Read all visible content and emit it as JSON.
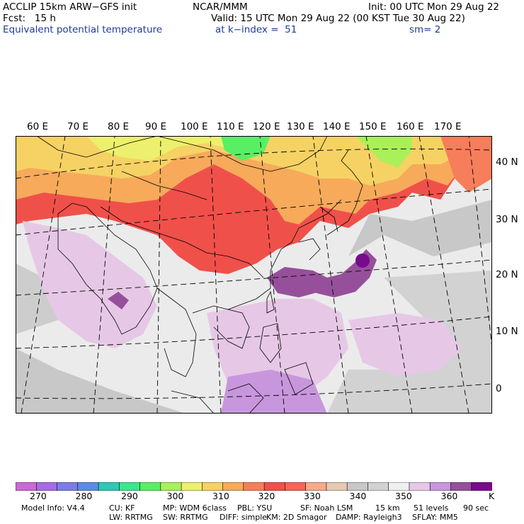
{
  "header": {
    "title_left": "ACCLIP 15km ARW−GFS init",
    "fcst": "Fcst:   15 h",
    "variable": "Equivalent potential temperature",
    "center": "NCAR/MMM",
    "init": "Init: 00 UTC Mon 29 Aug 22",
    "valid": "Valid: 15 UTC Mon 29 Aug 22 (00 KST Tue 30 Aug 22)",
    "level": "at k−index =  51",
    "smooth": "sm= 2"
  },
  "map": {
    "lon_labels": [
      "60 E",
      "70 E",
      "80 E",
      "90 E",
      "100 E",
      "110 E",
      "120 E",
      "130 E",
      "140 E",
      "150 E",
      "160 E",
      "170 E"
    ],
    "lat_labels": [
      "40 N",
      "30 N",
      "20 N",
      "10 N",
      "0"
    ]
  },
  "colorbar": {
    "colors": [
      "#c86ad2",
      "#a56ae6",
      "#7c7ce6",
      "#5a8ce6",
      "#2ec8b4",
      "#3ce68c",
      "#5aee64",
      "#aaf05a",
      "#ecf06e",
      "#f6d264",
      "#f6aa5a",
      "#f67e5a",
      "#f0504a",
      "#f6645a",
      "#f6aa8c",
      "#e6c8b4",
      "#c8c8c8",
      "#d2d2d2",
      "#f0f0f0",
      "#e6c8e6",
      "#c896dc",
      "#96509b",
      "#780a8c"
    ],
    "ticks": [
      "270",
      "280",
      "290",
      "300",
      "310",
      "320",
      "330",
      "340",
      "350",
      "360"
    ],
    "unit": "K"
  },
  "footer": {
    "line1": [
      "Model Info: V4.4",
      "CU: KF",
      "MP: WDM 6class",
      "PBL: YSU",
      "SF: Noah LSM",
      "15 km",
      "51 levels",
      "90 sec"
    ],
    "line2": [
      "LW: RRTMG",
      "SW: RRTMG",
      "DIFF: simple",
      "KM: 2D Smagor",
      "DAMP: Rayleigh3",
      "SFLAY: MM5"
    ]
  }
}
